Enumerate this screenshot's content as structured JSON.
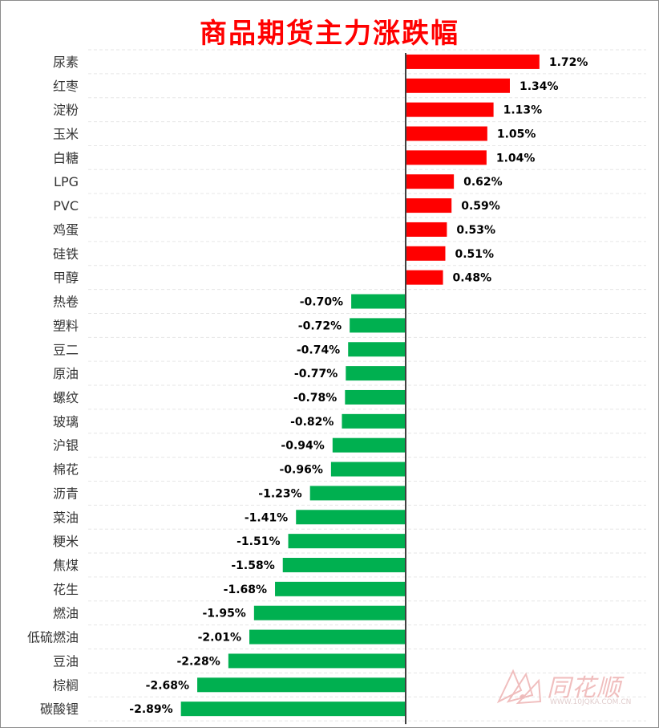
{
  "chart_data": {
    "type": "bar",
    "orientation": "horizontal",
    "title": "商品期货主力涨跌幅",
    "categories": [
      "尿素",
      "红枣",
      "淀粉",
      "玉米",
      "白糖",
      "LPG",
      "PVC",
      "鸡蛋",
      "硅铁",
      "甲醇",
      "热卷",
      "塑料",
      "豆二",
      "原油",
      "螺纹",
      "玻璃",
      "沪银",
      "棉花",
      "沥青",
      "菜油",
      "粳米",
      "焦煤",
      "花生",
      "燃油",
      "低硫燃油",
      "豆油",
      "棕榈",
      "碳酸锂"
    ],
    "values": [
      1.72,
      1.34,
      1.13,
      1.05,
      1.04,
      0.62,
      0.59,
      0.53,
      0.51,
      0.48,
      -0.7,
      -0.72,
      -0.74,
      -0.77,
      -0.78,
      -0.82,
      -0.94,
      -0.96,
      -1.23,
      -1.41,
      -1.51,
      -1.58,
      -1.68,
      -1.95,
      -2.01,
      -2.28,
      -2.68,
      -2.89
    ],
    "data_labels": [
      "1.72%",
      "1.34%",
      "1.13%",
      "1.05%",
      "1.04%",
      "0.62%",
      "0.59%",
      "0.53%",
      "0.51%",
      "0.48%",
      "-0.70%",
      "-0.72%",
      "-0.74%",
      "-0.77%",
      "-0.78%",
      "-0.82%",
      "-0.94%",
      "-0.96%",
      "-1.23%",
      "-1.41%",
      "-1.51%",
      "-1.58%",
      "-1.68%",
      "-1.95%",
      "-2.01%",
      "-2.28%",
      "-2.68%",
      "-2.89%"
    ],
    "xlim": [
      -3.0,
      2.2
    ],
    "colors": {
      "positive": "#ff0000",
      "negative": "#00b050",
      "axis": "#404040",
      "grid": "#e6e6e6",
      "title": "#ff0000"
    },
    "grid": true
  },
  "watermark": {
    "name": "同花顺",
    "site": "WWW.10JQKA.COM.CN"
  }
}
